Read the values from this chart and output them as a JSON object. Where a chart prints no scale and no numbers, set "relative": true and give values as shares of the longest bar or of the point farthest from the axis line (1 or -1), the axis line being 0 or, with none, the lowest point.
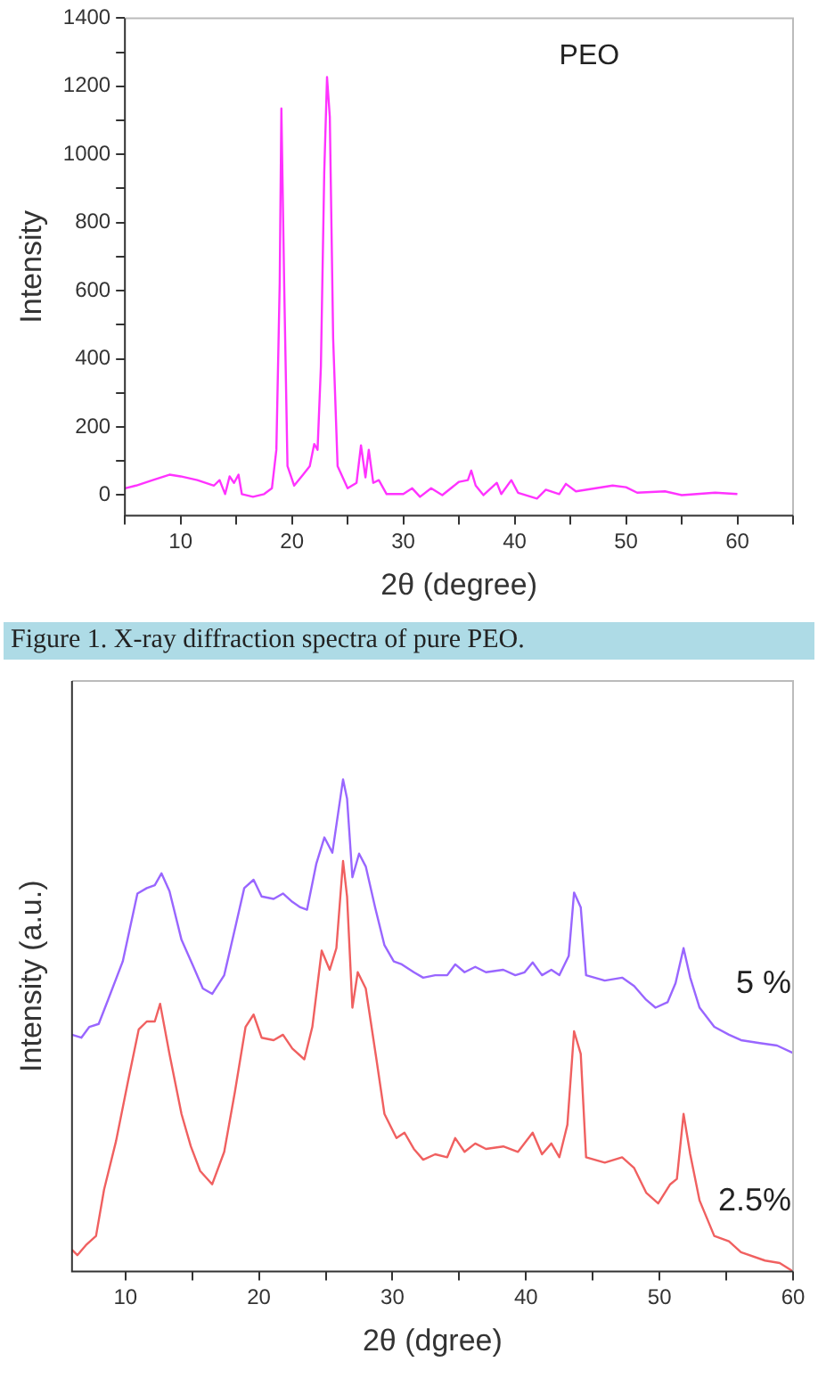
{
  "chart_data": [
    {
      "type": "line",
      "xlabel": "2θ (degree)",
      "ylabel": "Intensity",
      "annotations": [
        "Figure 1. X-ray diffraction spectra of pure PEO."
      ],
      "legend": "top right",
      "grid": false,
      "marker": "none",
      "line_style": "solid",
      "xlim": [
        5,
        65
      ],
      "xticks": [
        {
          "value": 5,
          "label": null
        },
        10,
        {
          "value": 15,
          "label": null
        },
        20,
        {
          "value": 25,
          "label": null
        },
        30,
        {
          "value": 35,
          "label": null
        },
        40,
        {
          "value": 45,
          "label": null
        },
        50,
        {
          "value": 55,
          "label": null
        },
        60,
        {
          "value": 65,
          "label": null
        }
      ],
      "ylim": [
        -60,
        1400
      ],
      "yticks": [
        0,
        {
          "value": 100,
          "label": null
        },
        200,
        {
          "value": 300,
          "label": null
        },
        400,
        {
          "value": 500,
          "label": null
        },
        600,
        {
          "value": 700,
          "label": null
        },
        800,
        {
          "value": 900,
          "label": null
        },
        1000,
        {
          "value": 1100,
          "label": null
        },
        1200,
        {
          "value": 1300,
          "label": null
        },
        1400
      ],
      "series": [
        {
          "name": "PEO",
          "color": "#ff33ff",
          "x": [
            5,
            6,
            7.5,
            9,
            10,
            11.5,
            13,
            13.5,
            14,
            14.4,
            14.8,
            15.2,
            15.5,
            16.5,
            17.5,
            18.2,
            18.6,
            18.9,
            19.05,
            19.3,
            19.6,
            20.2,
            21,
            21.6,
            22,
            22.3,
            22.6,
            22.9,
            23.15,
            23.4,
            23.7,
            24.1,
            25,
            25.8,
            26.2,
            26.6,
            26.9,
            27.3,
            27.8,
            28.5,
            30,
            30.8,
            31.5,
            32.5,
            33.5,
            35,
            35.8,
            36.1,
            36.5,
            37.2,
            38.4,
            38.8,
            39.7,
            40.3,
            42,
            42.8,
            44,
            44.6,
            45.5,
            48.8,
            50,
            51,
            53.5,
            55,
            58,
            60
          ],
          "values": [
            20,
            28,
            44,
            60,
            55,
            44,
            28,
            44,
            3,
            55,
            36,
            60,
            3,
            -5,
            3,
            20,
            133,
            622,
            1135,
            622,
            85,
            28,
            60,
            85,
            150,
            133,
            378,
            947,
            1227,
            1110,
            459,
            85,
            20,
            36,
            146,
            52,
            133,
            36,
            44,
            3,
            3,
            20,
            -5,
            20,
            0,
            39,
            44,
            72,
            28,
            0,
            36,
            3,
            44,
            7,
            -10,
            16,
            3,
            33,
            11,
            28,
            23,
            7,
            11,
            0,
            7,
            3
          ]
        }
      ]
    },
    {
      "type": "line",
      "xlabel": "2θ (dgree)",
      "ylabel": "Intensity (a.u.)",
      "relative": true,
      "legend": false,
      "grid": false,
      "marker": "none",
      "line_style": "solid",
      "tick_labels": "x",
      "xlim": [
        6,
        60
      ],
      "xticks": [
        10,
        {
          "value": 15,
          "label": null
        },
        20,
        {
          "value": 25,
          "label": null
        },
        30,
        {
          "value": 35,
          "label": null
        },
        40,
        {
          "value": 45,
          "label": null
        },
        50,
        {
          "value": 55,
          "label": null
        },
        60
      ],
      "series": [
        {
          "name": "5 %",
          "color": "#9966ff",
          "x": [
            6.0,
            6.7,
            7.3,
            8.0,
            8.7,
            9.8,
            10.9,
            11.6,
            12.2,
            12.7,
            13.3,
            14.2,
            15.1,
            15.8,
            16.5,
            17.4,
            18.2,
            18.9,
            19.6,
            20.2,
            21.1,
            21.8,
            22.5,
            23.1,
            23.6,
            24.3,
            24.9,
            25.5,
            26.3,
            26.6,
            27.0,
            27.5,
            28.0,
            28.7,
            29.4,
            30.1,
            30.7,
            31.6,
            32.3,
            33.2,
            34.1,
            34.7,
            35.4,
            36.2,
            37.0,
            38.3,
            39.2,
            39.9,
            40.5,
            41.2,
            41.9,
            42.5,
            43.2,
            43.6,
            44.1,
            44.5,
            45.9,
            47.2,
            48.1,
            49.0,
            49.7,
            50.6,
            51.2,
            51.8,
            52.3,
            53.0,
            54.1,
            55.2,
            56.1,
            57.5,
            58.8,
            60.0
          ],
          "values": [
            0.481,
            0.475,
            0.497,
            0.503,
            0.552,
            0.63,
            0.768,
            0.779,
            0.785,
            0.809,
            0.773,
            0.674,
            0.619,
            0.575,
            0.564,
            0.602,
            0.696,
            0.779,
            0.796,
            0.762,
            0.757,
            0.768,
            0.751,
            0.74,
            0.735,
            0.829,
            0.882,
            0.851,
            1,
            0.961,
            0.801,
            0.849,
            0.823,
            0.74,
            0.663,
            0.63,
            0.624,
            0.608,
            0.597,
            0.602,
            0.602,
            0.624,
            0.608,
            0.619,
            0.608,
            0.613,
            0.602,
            0.608,
            0.628,
            0.602,
            0.613,
            0.602,
            0.641,
            0.77,
            0.74,
            0.602,
            0.591,
            0.597,
            0.58,
            0.552,
            0.536,
            0.547,
            0.586,
            0.657,
            0.597,
            0.536,
            0.497,
            0.481,
            0.47,
            0.464,
            0.459,
            0.444
          ]
        },
        {
          "name": "2.5%",
          "color": "#f06060",
          "x": [
            6.0,
            6.4,
            7.1,
            7.8,
            8.4,
            9.3,
            10.2,
            11.0,
            11.6,
            12.2,
            12.6,
            13.3,
            14.2,
            14.9,
            15.6,
            16.5,
            17.4,
            18.2,
            19.0,
            19.6,
            20.2,
            21.1,
            21.8,
            22.5,
            23.4,
            24.0,
            24.7,
            25.3,
            25.8,
            26.3,
            26.6,
            27.0,
            27.4,
            28.0,
            28.8,
            29.4,
            30.3,
            30.9,
            31.6,
            32.3,
            33.2,
            34.1,
            34.7,
            35.4,
            36.2,
            37.0,
            38.3,
            39.4,
            40.5,
            41.2,
            41.9,
            42.5,
            43.1,
            43.6,
            44.1,
            44.5,
            45.9,
            47.2,
            48.1,
            49.0,
            49.9,
            50.8,
            51.3,
            51.8,
            52.3,
            53.0,
            54.1,
            55.2,
            56.1,
            57.9,
            59.0,
            60.0
          ],
          "values": [
            0.044,
            0.033,
            0.055,
            0.072,
            0.166,
            0.265,
            0.387,
            0.492,
            0.508,
            0.508,
            0.544,
            0.442,
            0.32,
            0.254,
            0.204,
            0.177,
            0.243,
            0.365,
            0.497,
            0.522,
            0.475,
            0.47,
            0.481,
            0.453,
            0.431,
            0.497,
            0.652,
            0.613,
            0.657,
            0.834,
            0.762,
            0.536,
            0.608,
            0.575,
            0.431,
            0.32,
            0.271,
            0.282,
            0.249,
            0.227,
            0.238,
            0.232,
            0.271,
            0.243,
            0.26,
            0.249,
            0.254,
            0.243,
            0.282,
            0.238,
            0.26,
            0.232,
            0.298,
            0.488,
            0.442,
            0.232,
            0.221,
            0.232,
            0.21,
            0.16,
            0.138,
            0.177,
            0.188,
            0.32,
            0.238,
            0.144,
            0.072,
            0.061,
            0.039,
            0.022,
            0.017,
            0
          ]
        }
      ]
    }
  ]
}
